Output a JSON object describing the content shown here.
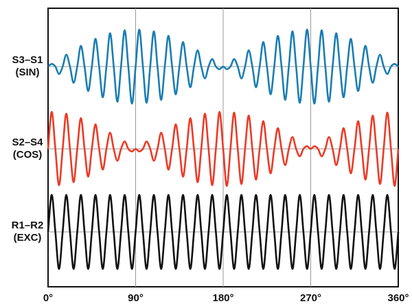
{
  "chart_data": {
    "type": "line",
    "x": [
      0,
      3.75,
      7.5,
      11.25,
      15,
      18.75,
      22.5,
      26.25,
      30,
      33.75,
      37.5,
      41.25,
      45,
      48.75,
      52.5,
      56.25,
      60,
      63.75,
      67.5,
      71.25,
      75,
      78.75,
      82.5,
      86.25,
      90,
      93.75,
      97.5,
      101.25,
      105,
      108.75,
      112.5,
      116.25,
      120,
      123.75,
      127.5,
      131.25,
      135,
      138.75,
      142.5,
      146.25,
      150,
      153.75,
      157.5,
      161.25,
      165,
      168.75,
      172.5,
      176.25,
      180,
      183.75,
      187.5,
      191.25,
      195,
      198.75,
      202.5,
      206.25,
      210,
      213.75,
      217.5,
      221.25,
      225,
      228.75,
      232.5,
      236.25,
      240,
      243.75,
      247.5,
      251.25,
      255,
      258.75,
      262.5,
      266.25,
      270,
      273.75,
      277.5,
      281.25,
      285,
      288.75,
      292.5,
      296.25,
      300,
      303.75,
      307.5,
      311.25,
      315,
      318.75,
      322.5,
      326.25,
      330,
      333.75,
      337.5,
      341.25,
      345,
      348.75,
      352.5,
      356.25,
      360
    ],
    "xlim": [
      0,
      360
    ],
    "xticks": [
      {
        "value": 0,
        "label": "0°"
      },
      {
        "value": 90,
        "label": "90°"
      },
      {
        "value": 180,
        "label": "180°"
      },
      {
        "value": 270,
        "label": "270°"
      },
      {
        "value": 360,
        "label": "360°"
      }
    ],
    "grid": true,
    "series": [
      {
        "name": "S3–S1",
        "tag": "(SIN)",
        "color": "#1a7db3",
        "values": [
          0,
          0.07,
          0,
          -0.2,
          0,
          0.32,
          0,
          -0.44,
          0,
          0.56,
          0,
          -0.66,
          0,
          0.75,
          0,
          -0.83,
          0,
          0.9,
          0,
          -0.95,
          0,
          0.98,
          0,
          -1,
          0,
          1,
          0,
          -0.98,
          0,
          0.95,
          0,
          -0.9,
          0,
          0.83,
          0,
          -0.75,
          0,
          0.66,
          0,
          -0.56,
          0,
          0.44,
          0,
          -0.32,
          0,
          0.2,
          0,
          -0.07,
          0,
          -0.07,
          0,
          0.2,
          0,
          -0.32,
          0,
          0.44,
          0,
          -0.56,
          0,
          0.66,
          0,
          -0.75,
          0,
          0.83,
          0,
          -0.9,
          0,
          0.95,
          0,
          -0.98,
          0,
          1,
          0,
          -1,
          0,
          0.98,
          0,
          -0.95,
          0,
          0.9,
          0,
          -0.83,
          0,
          0.75,
          0,
          -0.66,
          0,
          0.56,
          0,
          -0.44,
          0,
          0.32,
          0,
          -0.2,
          0,
          0.07,
          0
        ]
      },
      {
        "name": "S2–S4",
        "tag": "(COS)",
        "color": "#ec3a25",
        "values": [
          0,
          1,
          0,
          -0.98,
          0,
          0.95,
          0,
          -0.9,
          0,
          0.83,
          0,
          -0.75,
          0,
          0.66,
          0,
          -0.56,
          0,
          0.44,
          0,
          -0.32,
          0,
          0.2,
          0,
          -0.07,
          0,
          -0.07,
          0,
          0.2,
          0,
          -0.32,
          0,
          0.44,
          0,
          -0.56,
          0,
          0.66,
          0,
          -0.75,
          0,
          0.83,
          0,
          -0.9,
          0,
          0.95,
          0,
          -0.98,
          0,
          1,
          0,
          -1,
          0,
          0.98,
          0,
          -0.95,
          0,
          0.9,
          0,
          -0.83,
          0,
          0.75,
          0,
          -0.66,
          0,
          0.56,
          0,
          -0.44,
          0,
          0.32,
          0,
          -0.2,
          0,
          0.07,
          0,
          0.07,
          0,
          -0.2,
          0,
          0.32,
          0,
          -0.44,
          0,
          0.56,
          0,
          -0.66,
          0,
          0.75,
          0,
          -0.83,
          0,
          0.9,
          0,
          -0.95,
          0,
          0.98,
          0,
          -1,
          0
        ]
      },
      {
        "name": "R1–R2",
        "tag": "(EXC)",
        "color": "#111111",
        "values": [
          0,
          1,
          0,
          -1,
          0,
          1,
          0,
          -1,
          0,
          1,
          0,
          -1,
          0,
          1,
          0,
          -1,
          0,
          1,
          0,
          -1,
          0,
          1,
          0,
          -1,
          0,
          1,
          0,
          -1,
          0,
          1,
          0,
          -1,
          0,
          1,
          0,
          -1,
          0,
          1,
          0,
          -1,
          0,
          1,
          0,
          -1,
          0,
          1,
          0,
          -1,
          0,
          1,
          0,
          -1,
          0,
          1,
          0,
          -1,
          0,
          1,
          0,
          -1,
          0,
          1,
          0,
          -1,
          0,
          1,
          0,
          -1,
          0,
          1,
          0,
          -1,
          0,
          1,
          0,
          -1,
          0,
          1,
          0,
          -1,
          0,
          1,
          0,
          -1,
          0,
          1,
          0,
          -1,
          0,
          1,
          0,
          -1,
          0,
          1,
          0,
          -1,
          0
        ]
      }
    ]
  }
}
